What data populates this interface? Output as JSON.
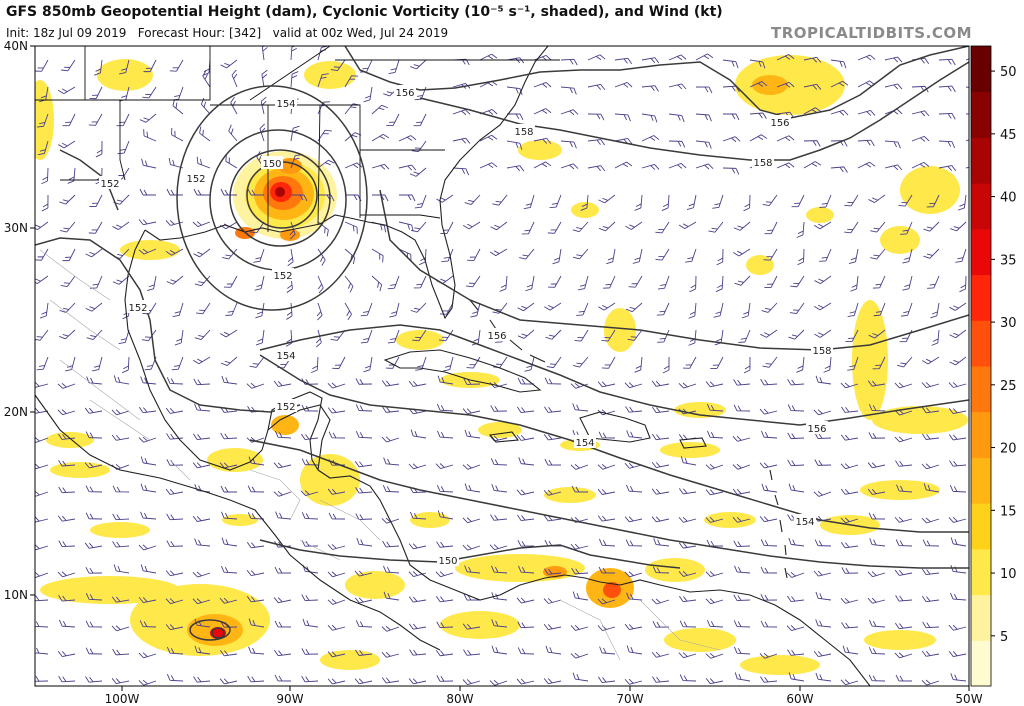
{
  "header": {
    "title": "GFS 850mb Geopotential Height (dam), Cyclonic Vorticity (10⁻⁵ s⁻¹, shaded), and Wind (kt)",
    "init": "Init: 18z Jul 09 2019",
    "forecast": "Forecast Hour: [342]",
    "valid": "valid at 00z Wed, Jul 24 2019",
    "brand": "TROPICALTIDBITS.COM"
  },
  "axes": {
    "lat_labels": [
      "40N",
      "30N",
      "20N",
      "10N"
    ],
    "lon_labels": [
      "100W",
      "90W",
      "80W",
      "70W",
      "60W",
      "50W"
    ]
  },
  "colorbar": {
    "ticks": [
      "50",
      "45",
      "40",
      "35",
      "30",
      "25",
      "20",
      "15",
      "10",
      "5"
    ],
    "colors": [
      "#fffbd0",
      "#fff3a0",
      "#ffe84a",
      "#ffd21a",
      "#ffb614",
      "#ff9a10",
      "#ff780e",
      "#ff500c",
      "#ff260a",
      "#e80808",
      "#c80606",
      "#a80404",
      "#880202",
      "#680000"
    ]
  },
  "contours": {
    "labels": [
      "156",
      "154",
      "156",
      "158",
      "152",
      "150",
      "152",
      "152",
      "152",
      "154",
      "156",
      "158",
      "152",
      "154",
      "156",
      "154",
      "150",
      "158",
      "156",
      "154"
    ]
  },
  "colors": {
    "coast": "#222222",
    "height_contour": "#3a3a3a",
    "barb": "#4a3f8a",
    "border": "#aaaaaa"
  }
}
